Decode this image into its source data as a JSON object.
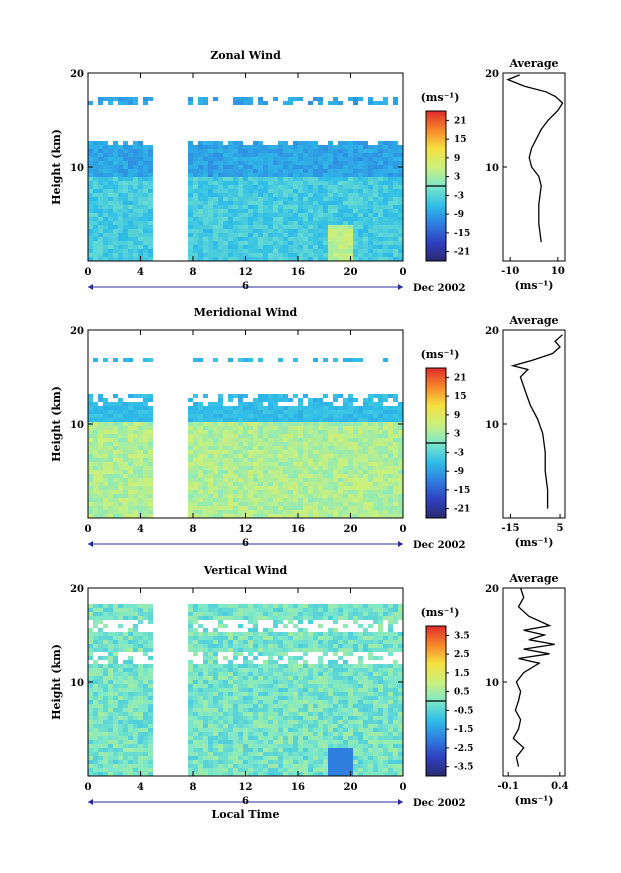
{
  "chart_data": [
    {
      "type": "heatmap",
      "title": "Zonal Wind",
      "ylabel": "Height (km)",
      "xticks": [
        "0",
        "4",
        "8",
        "12",
        "16",
        "20",
        "0"
      ],
      "yticks": [
        "10",
        "20"
      ],
      "date_day": "6",
      "date_label": "Dec 2002",
      "unit": "(ms⁻¹)",
      "colorbar": {
        "ticks": [
          "21",
          "15",
          "9",
          "3",
          "-3",
          "-9",
          "-15",
          "-21"
        ],
        "min": -24,
        "max": 24
      },
      "xlim": [
        0,
        24
      ],
      "ylim": [
        0,
        20
      ],
      "profile": {
        "title": "Average",
        "xlabel": "(ms⁻¹)",
        "xticks": [
          "-10",
          "10"
        ],
        "yticks": [
          "10",
          "20"
        ],
        "xlim": [
          -13,
          13
        ],
        "points": [
          [
            3,
            2
          ],
          [
            2,
            4
          ],
          [
            2,
            6
          ],
          [
            3,
            8
          ],
          [
            2,
            9
          ],
          [
            -1,
            10
          ],
          [
            -2,
            11
          ],
          [
            -1,
            12
          ],
          [
            1,
            13
          ],
          [
            3,
            14
          ],
          [
            6,
            15
          ],
          [
            10,
            16
          ],
          [
            12,
            16.8
          ],
          [
            9,
            17.5
          ],
          [
            5,
            18
          ],
          [
            -4,
            18.6
          ],
          [
            -8,
            19
          ],
          [
            -11,
            19.3
          ],
          [
            -6,
            19.8
          ]
        ]
      }
    },
    {
      "type": "heatmap",
      "title": "Meridional Wind",
      "ylabel": "Height (km)",
      "xticks": [
        "0",
        "4",
        "8",
        "12",
        "16",
        "20",
        "0"
      ],
      "yticks": [
        "10",
        "20"
      ],
      "date_day": "6",
      "date_label": "Dec 2002",
      "unit": "(ms⁻¹)",
      "colorbar": {
        "ticks": [
          "21",
          "15",
          "9",
          "3",
          "-3",
          "-9",
          "-15",
          "-21"
        ],
        "min": -24,
        "max": 24
      },
      "xlim": [
        0,
        24
      ],
      "ylim": [
        0,
        20
      ],
      "profile": {
        "title": "Average",
        "xlabel": "(ms⁻¹)",
        "xticks": [
          "-15",
          "5"
        ],
        "yticks": [
          "10",
          "20"
        ],
        "xlim": [
          -18,
          7
        ],
        "points": [
          [
            0,
            1
          ],
          [
            0,
            3
          ],
          [
            -1,
            5
          ],
          [
            -1,
            7
          ],
          [
            -2,
            9
          ],
          [
            -4,
            10.5
          ],
          [
            -7,
            12
          ],
          [
            -9,
            13.5
          ],
          [
            -11,
            15
          ],
          [
            -8,
            15.8
          ],
          [
            -14,
            16.2
          ],
          [
            -6,
            16.8
          ],
          [
            2,
            17.5
          ],
          [
            5,
            18.2
          ],
          [
            3,
            18.8
          ],
          [
            6,
            19.5
          ]
        ]
      }
    },
    {
      "type": "heatmap",
      "title": "Vertical Wind",
      "ylabel": "Height (km)",
      "xlabel": "Local Time",
      "xticks": [
        "0",
        "4",
        "8",
        "12",
        "16",
        "20",
        "0"
      ],
      "yticks": [
        "10",
        "20"
      ],
      "date_day": "6",
      "date_label": "Dec 2002",
      "unit": "(ms⁻¹)",
      "colorbar": {
        "ticks": [
          "3.5",
          "2.5",
          "1.5",
          "0.5",
          "-0.5",
          "-1.5",
          "-2.5",
          "-3.5"
        ],
        "min": -4,
        "max": 4
      },
      "xlim": [
        0,
        24
      ],
      "ylim": [
        0,
        20
      ],
      "profile": {
        "title": "Average",
        "xlabel": "(ms⁻¹)",
        "xticks": [
          "-0.1",
          "0.4"
        ],
        "yticks": [
          "10",
          "20"
        ],
        "xlim": [
          -0.15,
          0.45
        ],
        "points": [
          [
            0.0,
            1
          ],
          [
            -0.02,
            2
          ],
          [
            0.05,
            3
          ],
          [
            -0.05,
            4
          ],
          [
            0.0,
            5
          ],
          [
            0.02,
            6
          ],
          [
            -0.03,
            7
          ],
          [
            0.0,
            8
          ],
          [
            0.02,
            9
          ],
          [
            -0.02,
            10
          ],
          [
            0.05,
            11
          ],
          [
            0.2,
            12
          ],
          [
            0.0,
            12.5
          ],
          [
            0.3,
            13
          ],
          [
            0.05,
            13.5
          ],
          [
            0.35,
            14
          ],
          [
            0.1,
            14.5
          ],
          [
            0.25,
            15
          ],
          [
            0.05,
            15.5
          ],
          [
            0.3,
            16
          ],
          [
            0.1,
            17
          ],
          [
            0.0,
            18
          ],
          [
            0.05,
            19
          ],
          [
            0.02,
            20
          ]
        ]
      }
    }
  ]
}
